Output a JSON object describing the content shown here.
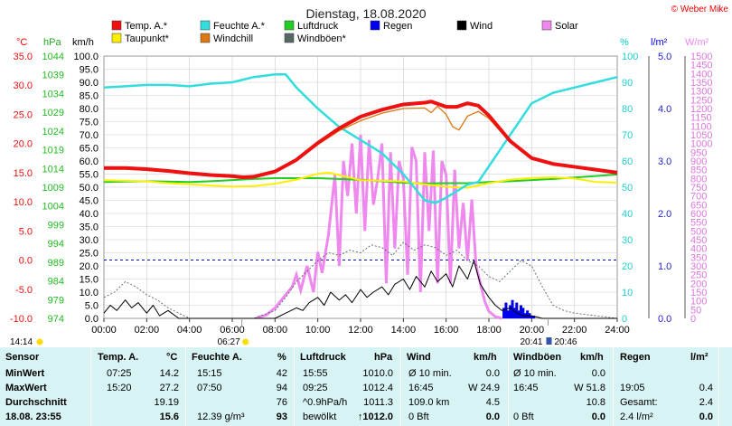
{
  "title": "Dienstag, 18.08.2020",
  "copyright": "© Weber Mike",
  "colors": {
    "temp": "#ee1111",
    "dew": "#ffee00",
    "hum": "#33dddd",
    "wind": "#000000",
    "windchill": "#dd7711",
    "pressure": "#22cc22",
    "gust": "#556666",
    "rain": "#0000ee",
    "solar": "#ee88ee",
    "grid": "#bbbbbb"
  },
  "legend": [
    {
      "key": "temp",
      "label": "Temp. A.*",
      "color": "#ee1111"
    },
    {
      "key": "hum",
      "label": "Feuchte A.*",
      "color": "#33dddd"
    },
    {
      "key": "pressure",
      "label": "Luftdruck",
      "color": "#22cc22"
    },
    {
      "key": "rain",
      "label": "Regen",
      "color": "#0000ee"
    },
    {
      "key": "wind",
      "label": "Wind",
      "color": "#000000"
    },
    {
      "key": "solar",
      "label": "Solar",
      "color": "#ee88ee"
    },
    {
      "key": "dew",
      "label": "Taupunkt*",
      "color": "#ffee00"
    },
    {
      "key": "windchill",
      "label": "Windchill",
      "color": "#dd7711"
    },
    {
      "key": "gust",
      "label": "Windböen*",
      "color": "#556666"
    }
  ],
  "axis_units": {
    "temp": "°C",
    "pressure": "hPa",
    "wind": "km/h",
    "hum": "%",
    "rain": "l/m²",
    "solar": "W/m²"
  },
  "chart_data": {
    "type": "line",
    "title": "Dienstag, 18.08.2020",
    "x_ticks": [
      "00:00",
      "02:00",
      "04:00",
      "06:00",
      "08:00",
      "10:00",
      "12:00",
      "14:00",
      "16:00",
      "18:00",
      "20:00",
      "22:00",
      "24:00"
    ],
    "axes": {
      "temp_ticks": [
        "35.0",
        "30.0",
        "25.0",
        "20.0",
        "15.0",
        "10.0",
        "5.0",
        "0.0",
        "-5.0",
        "-10.0"
      ],
      "pressure_ticks": [
        "1044",
        "1039",
        "1034",
        "1029",
        "1024",
        "1019",
        "1014",
        "1009",
        "1004",
        "999",
        "994",
        "989",
        "984",
        "979",
        "974"
      ],
      "wind_ticks": [
        "100.0",
        "95.0",
        "90.0",
        "85.0",
        "80.0",
        "75.0",
        "70.0",
        "65.0",
        "60.0",
        "55.0",
        "50.0",
        "45.0",
        "40.0",
        "35.0",
        "30.0",
        "25.0",
        "20.0",
        "15.0",
        "10.0",
        "5.0",
        "0.0"
      ],
      "hum_ticks": [
        "100",
        "90",
        "80",
        "70",
        "60",
        "50",
        "40",
        "30",
        "20",
        "10",
        "0"
      ],
      "rain_ticks": [
        "5.0",
        "4.0",
        "3.0",
        "2.0",
        "1.0",
        "0.0"
      ],
      "solar_ticks": [
        "1500",
        "1450",
        "1400",
        "1350",
        "1300",
        "1250",
        "1200",
        "1150",
        "1100",
        "1050",
        "1000",
        "950",
        "900",
        "850",
        "800",
        "750",
        "700",
        "650",
        "600",
        "550",
        "500",
        "450",
        "400",
        "350",
        "300",
        "250",
        "200",
        "150",
        "100",
        "50",
        "0"
      ],
      "temp_range": [
        -10,
        35
      ],
      "pressure_range": [
        974,
        1044
      ],
      "wind_range": [
        0,
        100
      ],
      "hum_range": [
        0,
        100
      ],
      "rain_range": [
        0,
        5
      ],
      "solar_range": [
        0,
        1500
      ]
    },
    "series": [
      {
        "name": "Temp. A.*",
        "axis": "temp",
        "color": "#ee1111",
        "x": [
          0,
          1,
          2,
          3,
          4,
          5,
          6,
          6.5,
          7,
          8,
          9,
          10,
          11,
          12,
          13,
          14,
          15,
          15.3,
          16,
          16.5,
          17,
          17.5,
          18,
          19,
          20,
          21,
          22,
          23,
          24
        ],
        "y": [
          15.8,
          15.8,
          15.6,
          15.3,
          14.9,
          14.6,
          14.4,
          14.2,
          14.3,
          15.2,
          17.2,
          20.1,
          22.6,
          24.6,
          25.8,
          26.7,
          27.0,
          27.2,
          26.3,
          26.3,
          26.9,
          26.5,
          24.8,
          20.4,
          17.5,
          16.5,
          16.0,
          15.5,
          15.0
        ]
      },
      {
        "name": "Taupunkt*",
        "axis": "temp",
        "color": "#ffee00",
        "x": [
          0,
          1,
          2,
          3,
          4,
          5,
          6,
          7,
          8,
          9,
          10,
          10.5,
          11,
          12,
          13,
          14,
          15,
          16,
          17,
          18,
          19,
          20,
          21,
          22,
          23,
          24
        ],
        "y": [
          13.7,
          13.6,
          13.5,
          13.2,
          13.0,
          12.8,
          12.6,
          12.7,
          13.1,
          13.8,
          14.8,
          15.0,
          14.6,
          13.7,
          13.6,
          13.5,
          13.0,
          12.6,
          12.4,
          13.2,
          13.8,
          14.1,
          14.2,
          14.0,
          13.4,
          13.3
        ]
      },
      {
        "name": "Windchill",
        "axis": "temp",
        "color": "#dd7711",
        "x": [
          0,
          1,
          2,
          3,
          4,
          5,
          6,
          6.5,
          7,
          8,
          9,
          10,
          11,
          12,
          13,
          14,
          15,
          15.3,
          15.6,
          16,
          16.3,
          16.6,
          17,
          17.5,
          18,
          19,
          20,
          21,
          22,
          23,
          24
        ],
        "y": [
          15.6,
          15.6,
          15.4,
          15.1,
          14.7,
          14.4,
          14.2,
          14.0,
          14.1,
          15.0,
          17.0,
          19.8,
          22.2,
          23.9,
          25.2,
          26.0,
          26.1,
          25.3,
          26.4,
          25.0,
          22.9,
          22.3,
          24.7,
          25.5,
          24.3,
          20.2,
          17.4,
          16.4,
          15.9,
          15.4,
          14.9
        ]
      },
      {
        "name": "Feuchte A.*",
        "axis": "hum",
        "color": "#33dddd",
        "x": [
          0,
          1,
          2,
          3,
          4,
          5,
          6,
          6.5,
          7,
          8,
          8.5,
          9,
          10,
          11,
          12,
          13,
          14,
          15,
          15.5,
          16,
          17,
          17.5,
          18,
          19,
          20,
          21,
          22,
          23,
          24
        ],
        "y": [
          88,
          88.5,
          89,
          89,
          88.5,
          89.5,
          90,
          91,
          92,
          93,
          93,
          88,
          80,
          73,
          68,
          63,
          55,
          45,
          44,
          46,
          51,
          52,
          58,
          70,
          82,
          86,
          88,
          90,
          92
        ]
      },
      {
        "name": "Luftdruck",
        "axis": "pressure",
        "color": "#22cc22",
        "x": [
          0,
          1,
          2,
          3,
          4,
          5,
          6,
          7,
          8,
          9,
          10,
          11,
          12,
          13,
          14,
          15,
          16,
          17,
          18,
          19,
          20,
          21,
          22,
          23,
          24
        ],
        "y": [
          1010.4,
          1010.5,
          1010.6,
          1010.5,
          1010.4,
          1010.6,
          1010.9,
          1011.2,
          1011.4,
          1011.4,
          1011.4,
          1011.2,
          1011.0,
          1010.6,
          1010.2,
          1010.0,
          1010.1,
          1010.1,
          1010.4,
          1010.6,
          1010.9,
          1011.2,
          1011.6,
          1012.0,
          1012.4
        ]
      },
      {
        "name": "Wind",
        "axis": "wind",
        "color": "#000000",
        "x": [
          0,
          0.3,
          0.6,
          1,
          1.3,
          1.6,
          2,
          2.3,
          2.6,
          3,
          3.5,
          4,
          5,
          6,
          7,
          8,
          8.5,
          9,
          9.3,
          9.6,
          10,
          10.3,
          10.6,
          11,
          11.3,
          11.6,
          12,
          12.3,
          12.6,
          13,
          13.3,
          13.6,
          14,
          14.3,
          14.6,
          15,
          15.3,
          15.6,
          16,
          16.3,
          16.6,
          17,
          17.3,
          17.6,
          18,
          18.3,
          18.6,
          19,
          19.3,
          19.6,
          20,
          20.5,
          21,
          21.5,
          22,
          23,
          24
        ],
        "y": [
          2,
          5,
          3,
          7,
          4,
          6,
          2,
          5,
          1,
          3,
          0,
          0,
          0,
          0,
          0,
          0,
          2,
          4,
          3,
          6,
          8,
          5,
          10,
          7,
          9,
          6,
          11,
          8,
          10,
          12,
          9,
          13,
          15,
          11,
          16,
          12,
          18,
          14,
          17,
          12,
          20,
          15,
          22,
          13,
          8,
          5,
          3,
          4,
          2,
          1,
          1,
          0,
          0,
          0,
          0,
          0,
          0
        ]
      },
      {
        "name": "Windböen*",
        "axis": "wind",
        "color": "#556666",
        "x": [
          0,
          0.5,
          1,
          1.5,
          2,
          2.5,
          3,
          3.5,
          4,
          5,
          6,
          7,
          8,
          8.5,
          9,
          9.5,
          10,
          10.5,
          11,
          11.5,
          12,
          12.5,
          13,
          13.5,
          14,
          14.5,
          15,
          15.5,
          16,
          16.5,
          17,
          17.5,
          18,
          18.5,
          19,
          19.5,
          20,
          20.5,
          21,
          21.5,
          22,
          23,
          24
        ],
        "y": [
          8,
          10,
          14,
          12,
          9,
          7,
          4,
          2,
          0,
          0,
          0,
          0,
          3,
          8,
          14,
          18,
          22,
          25,
          24,
          26,
          25,
          28,
          27,
          24,
          29,
          26,
          28,
          27,
          24,
          26,
          22,
          20,
          16,
          14,
          18,
          22,
          20,
          12,
          5,
          3,
          2,
          1,
          0
        ]
      },
      {
        "name": "Regen",
        "axis": "rain",
        "color": "#0000ee",
        "x": [
          18.7,
          18.8,
          18.9,
          19.0,
          19.1,
          19.2,
          19.3,
          19.4,
          19.5,
          19.6,
          19.7,
          19.8,
          19.9,
          20.0,
          20.1
        ],
        "y": [
          0.2,
          0.3,
          0.15,
          0.25,
          0.35,
          0.2,
          0.3,
          0.15,
          0.25,
          0.2,
          0.1,
          0.15,
          0.1,
          0.05,
          0.05
        ]
      },
      {
        "name": "Solar",
        "axis": "solar",
        "color": "#ee88ee",
        "x": [
          7.2,
          7.6,
          8,
          8.4,
          8.8,
          9,
          9.2,
          9.5,
          9.8,
          10,
          10.2,
          10.5,
          10.8,
          11,
          11.2,
          11.4,
          11.6,
          11.8,
          12,
          12.2,
          12.4,
          12.6,
          12.8,
          13,
          13.2,
          13.4,
          13.6,
          13.8,
          14,
          14.2,
          14.4,
          14.6,
          14.8,
          15,
          15.2,
          15.4,
          15.6,
          15.8,
          16,
          16.2,
          16.4,
          16.6,
          16.8,
          17,
          17.2,
          17.4,
          17.6,
          17.8,
          18,
          18.3,
          18.6
        ],
        "y": [
          5,
          20,
          60,
          120,
          180,
          250,
          160,
          300,
          150,
          380,
          260,
          480,
          820,
          300,
          900,
          700,
          1000,
          600,
          1050,
          500,
          1020,
          650,
          800,
          1000,
          200,
          950,
          400,
          900,
          800,
          250,
          980,
          900,
          150,
          950,
          500,
          960,
          200,
          900,
          820,
          200,
          850,
          400,
          660,
          330,
          680,
          300,
          200,
          100,
          40,
          10,
          0
        ]
      }
    ],
    "annotations": {
      "sunrise": "06:27",
      "sunset": "20:46",
      "moonrise": "14:14",
      "moonset": "20:41"
    }
  },
  "table": {
    "headers": {
      "sensor": "Sensor",
      "temp": "Temp. A.",
      "temp_unit": "°C",
      "hum": "Feuchte A.",
      "hum_unit": "%",
      "press": "Luftdruck",
      "press_unit": "hPa",
      "wind": "Wind",
      "wind_unit": "km/h",
      "gust": "Windböen",
      "gust_unit": "km/h",
      "rain": "Regen",
      "rain_unit": "l/m²"
    },
    "rows": [
      {
        "label": "MinWert",
        "temp_time": "07:25",
        "temp_val": "14.2",
        "hum_time": "15:15",
        "hum_val": "42",
        "press_time": "15:55",
        "press_val": "1010.0",
        "wind_label": "Ø 10 min.",
        "wind_val": "0.0",
        "gust_label": "Ø 10 min.",
        "gust_val": "0.0",
        "rain_time": "",
        "rain_val": ""
      },
      {
        "label": "MaxWert",
        "temp_time": "15:20",
        "temp_val": "27.2",
        "hum_time": "07:50",
        "hum_val": "94",
        "press_time": "09:25",
        "press_val": "1012.4",
        "wind_label": "16:45",
        "wind_val": "W 24.9",
        "gust_label": "16:45",
        "gust_val": "W 51.8",
        "rain_time": "19:05",
        "rain_val": "0.4"
      },
      {
        "label": "Durchschnitt",
        "temp_time": "",
        "temp_val": "19.19",
        "hum_time": "",
        "hum_val": "76",
        "press_time": "^0.9hPa/h",
        "press_val": "1011.3",
        "wind_label": "109.0 km",
        "wind_val": "4.5",
        "gust_label": "",
        "gust_val": "10.8",
        "rain_time": "Gesamt:",
        "rain_val": "2.4"
      },
      {
        "label": "18.08. 23:55",
        "temp_time": "",
        "temp_val": "15.6",
        "hum_time": "12.39 g/m³",
        "hum_val": "93",
        "press_time": "bewölkt",
        "press_val": "↑1012.0",
        "wind_label": "0 Bft",
        "wind_val": "0.0",
        "gust_label": "0 Bft",
        "gust_val": "0.0",
        "rain_time": "2.4 l/m²",
        "rain_val": "0.0"
      }
    ]
  }
}
